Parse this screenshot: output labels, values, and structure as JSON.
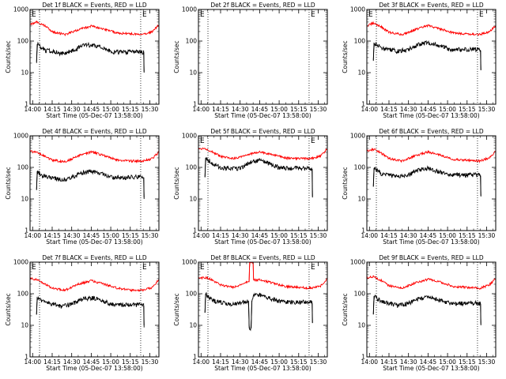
{
  "chart_data": [
    {
      "type": "line",
      "title": "Det 1f BLACK = Events, RED = LLD",
      "xlabel": "Start Time (05-Dec-07 13:58:00)",
      "ylabel": "Counts/sec",
      "x_tick_labels": [
        "14:00",
        "14:15",
        "14:30",
        "14:45",
        "15:00",
        "15:15",
        "15:30"
      ],
      "x_range_minutes": [
        -2,
        97
      ],
      "y_scale": "log",
      "y_tick_labels": [
        "1",
        "10",
        "100",
        "1000"
      ],
      "ylim": [
        1,
        1000
      ],
      "markers": [
        {
          "label": "E",
          "x_minutes": -2
        },
        {
          "label": "E",
          "x_minutes": 83
        }
      ],
      "vlines_minutes": [
        5.3,
        83
      ],
      "series": [
        {
          "color": "#ff0000",
          "x_minutes": [
            -2,
            3,
            8,
            15,
            25,
            35,
            45,
            55,
            65,
            75,
            85,
            92,
            97
          ],
          "values": [
            340,
            400,
            330,
            200,
            160,
            230,
            300,
            240,
            180,
            170,
            160,
            200,
            330
          ]
        },
        {
          "color": "#000000",
          "x_minutes": [
            3,
            3.5,
            6,
            10,
            15,
            22,
            30,
            38,
            46,
            54,
            62,
            70,
            78,
            84,
            85.4,
            85.6
          ],
          "values": [
            22,
            80,
            65,
            50,
            50,
            40,
            48,
            70,
            78,
            60,
            45,
            45,
            45,
            45,
            45,
            10
          ]
        }
      ]
    },
    {
      "type": "line",
      "title": "Det 2f BLACK = Events, RED = LLD",
      "xlabel": "Start Time (05-Dec-07 13:58:00)",
      "ylabel": "Counts/sec",
      "x_tick_labels": [
        "14:00",
        "14:15",
        "14:30",
        "14:45",
        "15:00",
        "15:15",
        "15:30"
      ],
      "x_range_minutes": [
        -2,
        97
      ],
      "y_scale": "log",
      "y_tick_labels": [
        "1",
        "10",
        "100",
        "1000"
      ],
      "ylim": [
        1,
        1000
      ],
      "markers": [
        {
          "label": "E",
          "x_minutes": -2
        },
        {
          "label": "E",
          "x_minutes": 83
        }
      ],
      "vlines_minutes": [
        5.3,
        83
      ],
      "series": []
    },
    {
      "type": "line",
      "title": "Det 3f BLACK = Events, RED = LLD",
      "xlabel": "Start Time (05-Dec-07 13:58:00)",
      "ylabel": "Counts/sec",
      "x_tick_labels": [
        "14:00",
        "14:15",
        "14:30",
        "14:45",
        "15:00",
        "15:15",
        "15:30"
      ],
      "x_range_minutes": [
        -2,
        97
      ],
      "y_scale": "log",
      "y_tick_labels": [
        "1",
        "10",
        "100",
        "1000"
      ],
      "ylim": [
        1,
        1000
      ],
      "markers": [
        {
          "label": "E",
          "x_minutes": -2
        },
        {
          "label": "E",
          "x_minutes": 83
        }
      ],
      "vlines_minutes": [
        5.3,
        83
      ],
      "series": [
        {
          "color": "#ff0000",
          "x_minutes": [
            -2,
            3,
            8,
            15,
            25,
            35,
            45,
            55,
            65,
            75,
            85,
            92,
            97
          ],
          "values": [
            300,
            370,
            300,
            190,
            160,
            230,
            310,
            240,
            180,
            170,
            160,
            200,
            300
          ]
        },
        {
          "color": "#000000",
          "x_minutes": [
            3,
            3.5,
            6,
            10,
            15,
            22,
            30,
            38,
            46,
            54,
            62,
            70,
            78,
            84,
            85.4,
            85.6
          ],
          "values": [
            25,
            90,
            75,
            60,
            55,
            48,
            55,
            80,
            90,
            70,
            55,
            55,
            55,
            55,
            50,
            12
          ]
        }
      ]
    },
    {
      "type": "line",
      "title": "Det 4f BLACK = Events, RED = LLD",
      "xlabel": "Start Time (05-Dec-07 13:58:00)",
      "ylabel": "Counts/sec",
      "x_tick_labels": [
        "14:00",
        "14:15",
        "14:30",
        "14:45",
        "15:00",
        "15:15",
        "15:30"
      ],
      "x_range_minutes": [
        -2,
        97
      ],
      "y_scale": "log",
      "y_tick_labels": [
        "1",
        "10",
        "100",
        "1000"
      ],
      "ylim": [
        1,
        1000
      ],
      "markers": [],
      "vlines_minutes": [
        5.3,
        83
      ],
      "series": [
        {
          "color": "#ff0000",
          "x_minutes": [
            -2,
            3,
            8,
            15,
            25,
            35,
            45,
            55,
            65,
            75,
            85,
            92,
            97
          ],
          "values": [
            320,
            300,
            240,
            170,
            150,
            230,
            310,
            240,
            170,
            160,
            160,
            190,
            310
          ]
        },
        {
          "color": "#000000",
          "x_minutes": [
            3,
            3.5,
            6,
            10,
            15,
            22,
            30,
            38,
            46,
            54,
            62,
            70,
            78,
            84,
            85.4,
            85.6
          ],
          "values": [
            20,
            75,
            60,
            50,
            48,
            40,
            48,
            68,
            75,
            60,
            48,
            48,
            50,
            50,
            48,
            10
          ]
        }
      ]
    },
    {
      "type": "line",
      "title": "Det 5f BLACK = Events, RED = LLD",
      "xlabel": "Start Time (05-Dec-07 13:58:00)",
      "ylabel": "Counts/sec",
      "x_tick_labels": [
        "14:00",
        "14:15",
        "14:30",
        "14:45",
        "15:00",
        "15:15",
        "15:30"
      ],
      "x_range_minutes": [
        -2,
        97
      ],
      "y_scale": "log",
      "y_tick_labels": [
        "1",
        "10",
        "100",
        "1000"
      ],
      "ylim": [
        1,
        1000
      ],
      "markers": [
        {
          "label": "E",
          "x_minutes": -2
        },
        {
          "label": "E",
          "x_minutes": 83
        }
      ],
      "vlines_minutes": [
        5.3,
        83
      ],
      "series": [
        {
          "color": "#ff0000",
          "x_minutes": [
            -2,
            3,
            8,
            15,
            25,
            35,
            45,
            55,
            65,
            75,
            85,
            92,
            97
          ],
          "values": [
            390,
            400,
            320,
            220,
            190,
            250,
            310,
            250,
            200,
            190,
            190,
            230,
            400
          ]
        },
        {
          "color": "#000000",
          "x_minutes": [
            3,
            3.5,
            6,
            10,
            15,
            22,
            30,
            38,
            46,
            54,
            62,
            70,
            78,
            84,
            85.4,
            85.6
          ],
          "values": [
            50,
            200,
            170,
            120,
            100,
            90,
            95,
            150,
            170,
            120,
            95,
            95,
            95,
            95,
            90,
            12
          ]
        }
      ]
    },
    {
      "type": "line",
      "title": "Det 6f BLACK = Events, RED = LLD",
      "xlabel": "Start Time (05-Dec-07 13:58:00)",
      "ylabel": "Counts/sec",
      "x_tick_labels": [
        "14:00",
        "14:15",
        "14:30",
        "14:45",
        "15:00",
        "15:15",
        "15:30"
      ],
      "x_range_minutes": [
        -2,
        97
      ],
      "y_scale": "log",
      "y_tick_labels": [
        "1",
        "10",
        "100",
        "1000"
      ],
      "ylim": [
        1,
        1000
      ],
      "markers": [],
      "vlines_minutes": [
        5.3,
        83
      ],
      "series": [
        {
          "color": "#ff0000",
          "x_minutes": [
            -2,
            3,
            8,
            15,
            25,
            35,
            45,
            55,
            65,
            75,
            85,
            92,
            97
          ],
          "values": [
            330,
            380,
            300,
            190,
            160,
            230,
            310,
            240,
            180,
            170,
            160,
            200,
            330
          ]
        },
        {
          "color": "#000000",
          "x_minutes": [
            3,
            3.5,
            6,
            10,
            15,
            22,
            30,
            38,
            46,
            54,
            62,
            70,
            78,
            84,
            85.4,
            85.6
          ],
          "values": [
            25,
            95,
            80,
            60,
            58,
            50,
            58,
            85,
            95,
            72,
            58,
            58,
            58,
            58,
            55,
            12
          ]
        }
      ]
    },
    {
      "type": "line",
      "title": "Det 7f BLACK = Events, RED = LLD",
      "xlabel": "Start Time (05-Dec-07 13:58:00)",
      "ylabel": "Counts/sec",
      "x_tick_labels": [
        "14:00",
        "14:15",
        "14:30",
        "14:45",
        "15:00",
        "15:15",
        "15:30"
      ],
      "x_range_minutes": [
        -2,
        97
      ],
      "y_scale": "log",
      "y_tick_labels": [
        "1",
        "10",
        "100",
        "1000"
      ],
      "ylim": [
        1,
        1000
      ],
      "markers": [
        {
          "label": "E",
          "x_minutes": -2
        },
        {
          "label": "E",
          "x_minutes": 83
        }
      ],
      "vlines_minutes": [
        5.3,
        83
      ],
      "series": [
        {
          "color": "#ff0000",
          "x_minutes": [
            -2,
            3,
            8,
            15,
            25,
            35,
            45,
            55,
            65,
            75,
            85,
            92,
            97
          ],
          "values": [
            300,
            280,
            220,
            150,
            130,
            200,
            260,
            200,
            150,
            130,
            130,
            160,
            280
          ]
        },
        {
          "color": "#000000",
          "x_minutes": [
            3,
            3.5,
            6,
            10,
            15,
            22,
            30,
            38,
            46,
            54,
            62,
            70,
            78,
            84,
            85.4,
            85.6
          ],
          "values": [
            22,
            80,
            65,
            50,
            48,
            40,
            48,
            68,
            75,
            60,
            45,
            45,
            45,
            45,
            42,
            10
          ]
        }
      ]
    },
    {
      "type": "line",
      "title": "Det 8f BLACK = Events, RED = LLD",
      "xlabel": "Start Time (05-Dec-07 13:58:00)",
      "ylabel": "Counts/sec",
      "x_tick_labels": [
        "14:00",
        "14:15",
        "14:30",
        "14:45",
        "15:00",
        "15:15",
        "15:30"
      ],
      "x_range_minutes": [
        -2,
        97
      ],
      "y_scale": "log",
      "y_tick_labels": [
        "1",
        "10",
        "100",
        "1000"
      ],
      "ylim": [
        1,
        1000
      ],
      "markers": [
        {
          "label": "E",
          "x_minutes": -2
        },
        {
          "label": "E",
          "x_minutes": 83
        }
      ],
      "vlines_minutes": [
        5.3,
        83
      ],
      "series": [
        {
          "color": "#ff0000",
          "x_minutes": [
            -2,
            3,
            8,
            15,
            25,
            35,
            37,
            37.3,
            40,
            40.3,
            45,
            55,
            65,
            75,
            85,
            92,
            97
          ],
          "values": [
            300,
            330,
            280,
            190,
            160,
            230,
            240,
            1000,
            1000,
            270,
            280,
            220,
            170,
            160,
            150,
            180,
            300
          ]
        },
        {
          "color": "#000000",
          "x_minutes": [
            3,
            3.5,
            6,
            10,
            15,
            22,
            30,
            36.5,
            37,
            38.5,
            39,
            40.5,
            46,
            54,
            62,
            70,
            78,
            84,
            85.4,
            85.6
          ],
          "values": [
            25,
            100,
            80,
            60,
            55,
            45,
            52,
            60,
            8,
            8,
            60,
            95,
            90,
            70,
            55,
            55,
            55,
            55,
            50,
            12
          ]
        }
      ]
    },
    {
      "type": "line",
      "title": "Det 9f BLACK = Events, RED = LLD",
      "xlabel": "Start Time (05-Dec-07 13:58:00)",
      "ylabel": "Counts/sec",
      "x_tick_labels": [
        "14:00",
        "14:15",
        "14:30",
        "14:45",
        "15:00",
        "15:15",
        "15:30"
      ],
      "x_range_minutes": [
        -2,
        97
      ],
      "y_scale": "log",
      "y_tick_labels": [
        "1",
        "10",
        "100",
        "1000"
      ],
      "ylim": [
        1,
        1000
      ],
      "markers": [],
      "vlines_minutes": [
        5.3,
        83
      ],
      "series": [
        {
          "color": "#ff0000",
          "x_minutes": [
            -2,
            3,
            8,
            15,
            25,
            35,
            45,
            55,
            65,
            75,
            85,
            92,
            97
          ],
          "values": [
            310,
            350,
            280,
            180,
            150,
            220,
            290,
            230,
            170,
            160,
            150,
            190,
            310
          ]
        },
        {
          "color": "#000000",
          "x_minutes": [
            3,
            3.5,
            6,
            10,
            15,
            22,
            30,
            38,
            46,
            54,
            62,
            70,
            78,
            84,
            85.4,
            85.6
          ],
          "values": [
            22,
            85,
            70,
            55,
            50,
            42,
            50,
            70,
            80,
            62,
            50,
            50,
            50,
            50,
            48,
            10
          ]
        }
      ]
    }
  ]
}
